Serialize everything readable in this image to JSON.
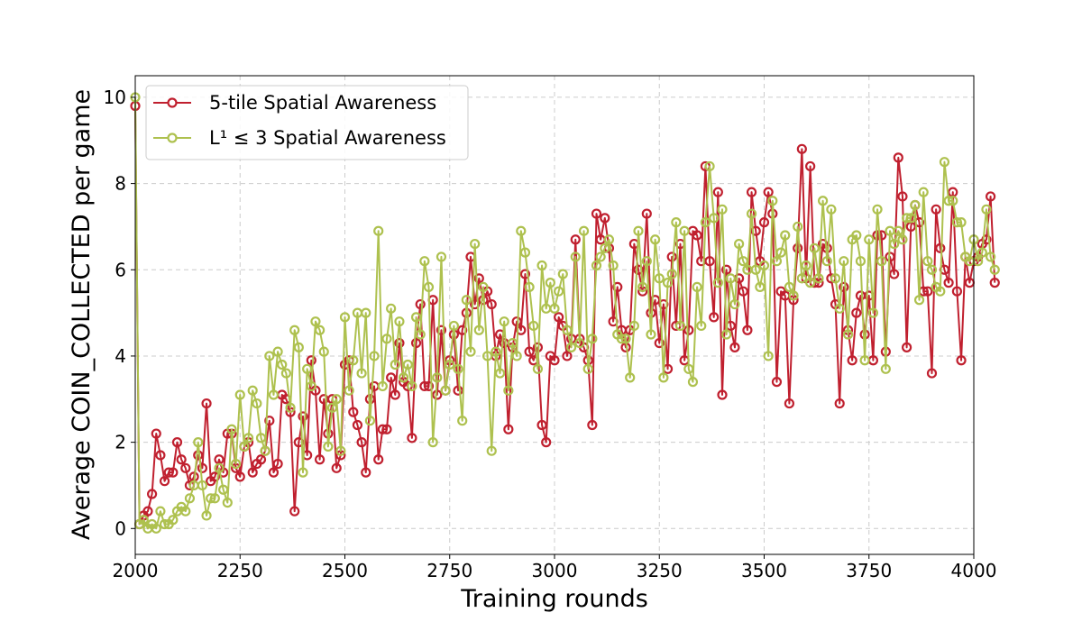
{
  "chart_data": {
    "type": "line",
    "title": "",
    "xlabel": "Training rounds",
    "ylabel": "Average COIN_COLLECTED per game",
    "xlim": [
      2000,
      4000
    ],
    "ylim": [
      -0.6,
      10.5
    ],
    "xticks": [
      2000,
      2250,
      2500,
      2750,
      3000,
      3250,
      3500,
      3750,
      4000
    ],
    "yticks": [
      0,
      2,
      4,
      6,
      8,
      10
    ],
    "grid": true,
    "legend_position": "top-left",
    "x_start": 2000,
    "x_step": 10,
    "series": [
      {
        "name": "5-tile Spatial Awareness",
        "color": "#c0202f",
        "values": [
          9.8,
          0.1,
          0.3,
          0.4,
          0.8,
          2.2,
          1.7,
          1.1,
          1.3,
          1.3,
          2.0,
          1.6,
          1.4,
          1.0,
          1.2,
          1.7,
          1.4,
          2.9,
          1.1,
          1.2,
          1.6,
          1.3,
          2.2,
          2.2,
          1.4,
          1.2,
          1.9,
          2.0,
          1.3,
          1.5,
          1.6,
          1.8,
          2.5,
          1.3,
          1.5,
          3.1,
          3.0,
          2.7,
          0.4,
          2.0,
          2.6,
          1.7,
          3.9,
          3.2,
          1.6,
          3.0,
          2.2,
          3.0,
          1.4,
          1.7,
          3.8,
          3.9,
          2.7,
          2.4,
          2.0,
          1.3,
          3.0,
          3.3,
          1.6,
          2.3,
          2.3,
          3.5,
          3.1,
          4.3,
          3.4,
          3.3,
          2.1,
          4.3,
          5.2,
          3.3,
          3.3,
          5.3,
          3.1,
          4.6,
          3.2,
          3.9,
          4.5,
          3.2,
          4.6,
          5.0,
          6.3,
          5.2,
          5.8,
          5.3,
          5.5,
          5.2,
          4.0,
          4.5,
          4.3,
          2.3,
          4.2,
          4.8,
          4.6,
          5.9,
          4.1,
          3.9,
          4.2,
          2.4,
          2.0,
          4.0,
          3.9,
          4.9,
          4.7,
          4.0,
          4.4,
          6.7,
          4.4,
          4.2,
          3.9,
          2.4,
          7.3,
          6.7,
          7.2,
          6.5,
          4.8,
          5.6,
          4.6,
          4.2,
          4.6,
          6.6,
          6.0,
          5.5,
          7.3,
          5.0,
          5.3,
          4.3,
          5.2,
          3.7,
          6.3,
          4.7,
          6.6,
          3.9,
          4.6,
          6.9,
          6.8,
          6.2,
          8.4,
          6.2,
          4.9,
          7.8,
          3.1,
          6.0,
          4.7,
          4.2,
          5.8,
          5.5,
          4.6,
          7.8,
          6.9,
          6.2,
          7.1,
          7.8,
          7.3,
          3.4,
          5.5,
          5.4,
          2.9,
          5.3,
          6.5,
          8.8,
          5.8,
          8.4,
          5.7,
          5.7,
          6.6,
          6.5,
          5.8,
          5.2,
          2.9,
          5.6,
          4.6,
          3.9,
          5.0,
          5.4,
          4.5,
          5.4,
          3.9,
          6.8,
          6.8,
          4.1,
          6.3,
          5.9,
          8.6,
          7.7,
          4.2,
          7.0,
          7.5,
          7.1,
          5.5,
          5.5,
          3.6,
          7.4,
          6.5,
          6.0,
          5.7,
          7.8,
          5.5,
          3.9,
          6.3,
          5.7,
          6.2,
          6.3,
          6.6,
          6.7,
          7.7,
          5.7
        ]
      },
      {
        "name": "L¹ ≤ 3 Spatial Awareness",
        "color": "#aec14f",
        "values": [
          10.0,
          0.1,
          0.2,
          0.0,
          0.1,
          0.0,
          0.4,
          0.1,
          0.1,
          0.2,
          0.4,
          0.5,
          0.4,
          0.7,
          1.0,
          2.0,
          1.0,
          0.3,
          0.7,
          0.7,
          1.4,
          0.9,
          0.6,
          2.3,
          1.5,
          3.1,
          1.9,
          2.1,
          3.2,
          2.9,
          2.1,
          1.8,
          4.0,
          3.1,
          4.1,
          3.8,
          3.6,
          2.8,
          4.6,
          4.2,
          1.3,
          3.7,
          3.3,
          4.8,
          4.6,
          4.1,
          1.9,
          2.8,
          3.0,
          1.8,
          4.9,
          3.2,
          3.9,
          5.0,
          3.6,
          5.0,
          2.5,
          4.0,
          6.9,
          3.3,
          4.4,
          5.1,
          3.8,
          4.8,
          3.5,
          3.8,
          3.3,
          4.9,
          4.5,
          6.2,
          5.6,
          2.0,
          3.5,
          6.3,
          3.2,
          3.8,
          4.7,
          3.7,
          2.5,
          5.3,
          4.1,
          6.6,
          4.6,
          5.6,
          4.0,
          1.8,
          4.1,
          3.6,
          4.8,
          3.2,
          4.3,
          4.0,
          6.9,
          6.4,
          5.6,
          4.7,
          3.7,
          6.1,
          5.1,
          5.7,
          5.1,
          5.5,
          5.9,
          4.6,
          4.2,
          6.3,
          4.3,
          6.9,
          3.7,
          4.4,
          6.1,
          6.3,
          6.5,
          6.7,
          6.1,
          4.5,
          4.4,
          4.4,
          3.5,
          4.7,
          6.9,
          5.6,
          6.2,
          4.5,
          6.7,
          5.8,
          3.5,
          5.7,
          5.9,
          7.1,
          4.7,
          6.9,
          3.7,
          3.4,
          5.6,
          4.7,
          7.1,
          8.4,
          7.2,
          5.7,
          7.4,
          4.5,
          5.8,
          5.2,
          6.6,
          6.2,
          6.0,
          7.3,
          6.0,
          5.6,
          6.1,
          4.0,
          7.6,
          6.2,
          6.4,
          6.8,
          5.6,
          5.4,
          7.0,
          5.8,
          6.1,
          5.7,
          6.5,
          5.8,
          7.6,
          6.2,
          7.4,
          5.8,
          5.1,
          6.2,
          4.5,
          6.7,
          6.8,
          6.2,
          3.9,
          6.7,
          5.0,
          7.4,
          6.2,
          3.7,
          6.9,
          6.6,
          6.9,
          6.7,
          7.2,
          7.2,
          7.5,
          5.3,
          7.8,
          6.2,
          6.0,
          5.6,
          5.5,
          8.5,
          7.6,
          7.6,
          7.1,
          7.1,
          6.3,
          6.2,
          6.7,
          6.2,
          6.4,
          7.4,
          6.3,
          6.0
        ]
      }
    ]
  }
}
